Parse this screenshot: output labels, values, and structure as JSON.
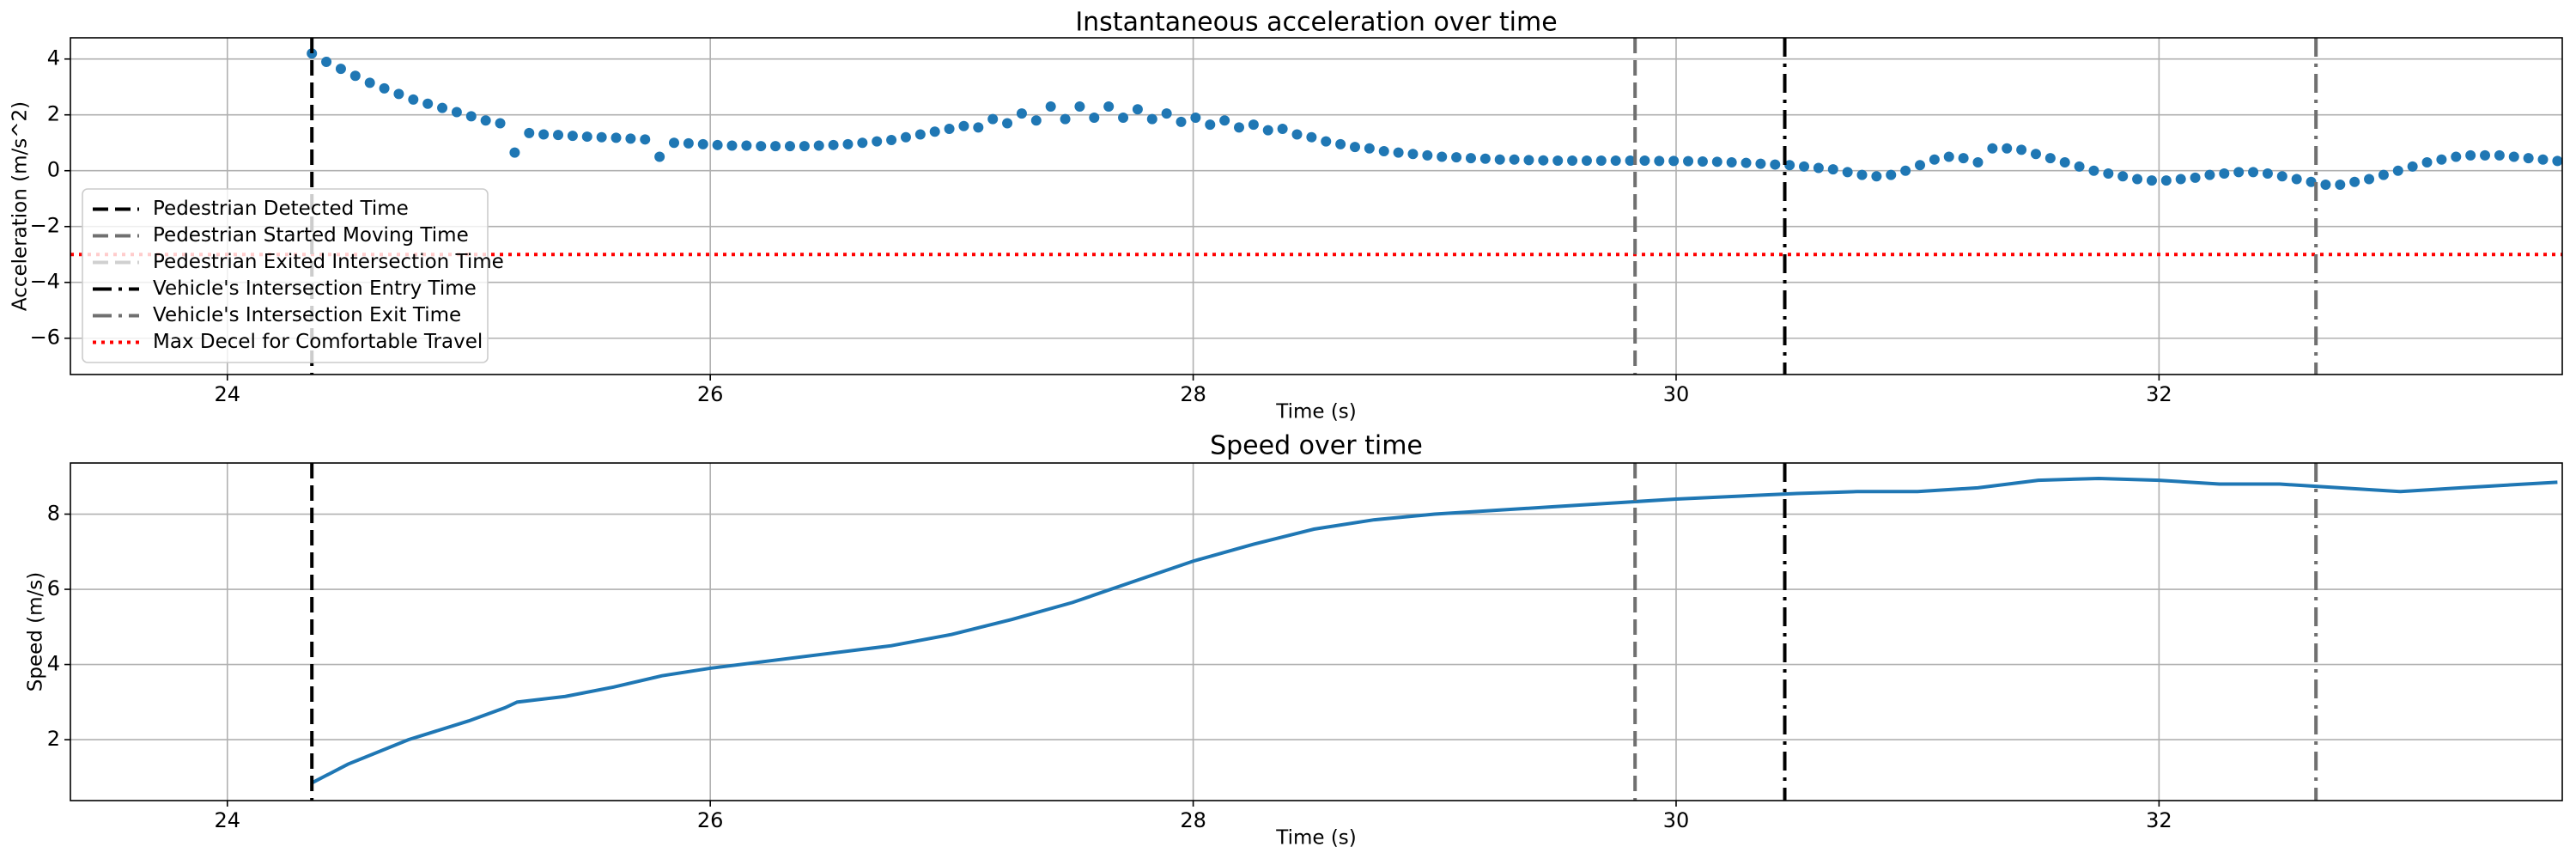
{
  "chart_data": [
    {
      "type": "scatter",
      "title": "Instantaneous acceleration over time",
      "x_label": "Time (s)",
      "y_label": "Acceleration (m/s^2)",
      "xlim": [
        23.35,
        33.67
      ],
      "xticks": [
        24,
        26,
        28,
        30,
        32
      ],
      "ylim": [
        -7.3,
        4.76
      ],
      "yticks": [
        -6,
        -4,
        -2,
        0,
        2,
        4
      ],
      "grid": true,
      "legend": "lower left",
      "color": "#1f77b4",
      "x": [
        24.35,
        24.41,
        24.47,
        24.53,
        24.59,
        24.65,
        24.71,
        24.77,
        24.83,
        24.89,
        24.95,
        25.01,
        25.07,
        25.13,
        25.19,
        25.25,
        25.31,
        25.37,
        25.43,
        25.49,
        25.55,
        25.61,
        25.67,
        25.73,
        25.79,
        25.85,
        25.91,
        25.97,
        26.03,
        26.09,
        26.15,
        26.21,
        26.27,
        26.33,
        26.39,
        26.45,
        26.51,
        26.57,
        26.63,
        26.69,
        26.75,
        26.81,
        26.87,
        26.93,
        26.99,
        27.05,
        27.11,
        27.17,
        27.23,
        27.29,
        27.35,
        27.41,
        27.47,
        27.53,
        27.59,
        27.65,
        27.71,
        27.77,
        27.83,
        27.89,
        27.95,
        28.01,
        28.07,
        28.13,
        28.19,
        28.25,
        28.31,
        28.37,
        28.43,
        28.49,
        28.55,
        28.61,
        28.67,
        28.73,
        28.79,
        28.85,
        28.91,
        28.97,
        29.03,
        29.09,
        29.15,
        29.21,
        29.27,
        29.33,
        29.39,
        29.45,
        29.51,
        29.57,
        29.63,
        29.69,
        29.75,
        29.81,
        29.87,
        29.93,
        29.99,
        30.05,
        30.11,
        30.17,
        30.23,
        30.29,
        30.35,
        30.41,
        30.47,
        30.53,
        30.59,
        30.65,
        30.71,
        30.77,
        30.83,
        30.89,
        30.95,
        31.01,
        31.07,
        31.13,
        31.19,
        31.25,
        31.31,
        31.37,
        31.43,
        31.49,
        31.55,
        31.61,
        31.67,
        31.73,
        31.79,
        31.85,
        31.91,
        31.97,
        32.03,
        32.09,
        32.15,
        32.21,
        32.27,
        32.33,
        32.39,
        32.45,
        32.51,
        32.57,
        32.63,
        32.69,
        32.75,
        32.81,
        32.87,
        32.93,
        32.99,
        33.05,
        33.11,
        33.17,
        33.23,
        33.29,
        33.35,
        33.41,
        33.47,
        33.53,
        33.59,
        33.65
      ],
      "values": [
        4.2,
        3.9,
        3.65,
        3.4,
        3.15,
        2.95,
        2.75,
        2.55,
        2.4,
        2.25,
        2.1,
        1.95,
        1.8,
        1.7,
        0.65,
        1.35,
        1.3,
        1.28,
        1.25,
        1.22,
        1.2,
        1.18,
        1.15,
        1.12,
        0.5,
        1.0,
        0.98,
        0.95,
        0.92,
        0.9,
        0.9,
        0.88,
        0.88,
        0.88,
        0.88,
        0.9,
        0.92,
        0.95,
        1.0,
        1.05,
        1.1,
        1.2,
        1.3,
        1.4,
        1.5,
        1.6,
        1.55,
        1.85,
        1.7,
        2.05,
        1.8,
        2.3,
        1.85,
        2.3,
        1.9,
        2.3,
        1.9,
        2.2,
        1.85,
        2.05,
        1.75,
        1.9,
        1.65,
        1.8,
        1.55,
        1.65,
        1.45,
        1.5,
        1.3,
        1.2,
        1.05,
        0.95,
        0.85,
        0.8,
        0.7,
        0.65,
        0.6,
        0.55,
        0.5,
        0.48,
        0.45,
        0.43,
        0.4,
        0.4,
        0.38,
        0.37,
        0.36,
        0.36,
        0.36,
        0.36,
        0.36,
        0.36,
        0.36,
        0.35,
        0.35,
        0.34,
        0.33,
        0.32,
        0.3,
        0.28,
        0.25,
        0.22,
        0.2,
        0.15,
        0.1,
        0.05,
        -0.05,
        -0.15,
        -0.2,
        -0.15,
        0.0,
        0.2,
        0.4,
        0.5,
        0.45,
        0.3,
        0.8,
        0.8,
        0.75,
        0.6,
        0.45,
        0.3,
        0.15,
        0.0,
        -0.1,
        -0.2,
        -0.3,
        -0.35,
        -0.35,
        -0.3,
        -0.25,
        -0.15,
        -0.1,
        -0.05,
        -0.05,
        -0.1,
        -0.2,
        -0.3,
        -0.4,
        -0.5,
        -0.5,
        -0.4,
        -0.3,
        -0.15,
        0.0,
        0.15,
        0.3,
        0.4,
        0.5,
        0.55,
        0.55,
        0.55,
        0.5,
        0.45,
        0.4,
        0.35
      ],
      "vlines": [
        {
          "name": "Pedestrian Detected Time",
          "x": 24.35,
          "color": "#000000",
          "style": "dashed"
        },
        {
          "name": "Pedestrian Started Moving Time",
          "x": 29.83,
          "color": "#707070",
          "style": "dashed"
        },
        {
          "name": "Pedestrian Exited Intersection Time",
          "x": null,
          "color": "#d0d0d0",
          "style": "dashed"
        },
        {
          "name": "Vehicle's Intersection Entry Time",
          "x": 30.45,
          "color": "#000000",
          "style": "dashdot"
        },
        {
          "name": "Vehicle's Intersection Exit Time",
          "x": 32.65,
          "color": "#707070",
          "style": "dashdot"
        }
      ],
      "hlines": [
        {
          "name": "Max Decel for Comfortable Travel",
          "y": -3,
          "color": "#ff0000",
          "style": "dotted"
        }
      ]
    },
    {
      "type": "line",
      "title": "Speed over time",
      "x_label": "Time (s)",
      "y_label": "Speed (m/s)",
      "xlim": [
        23.35,
        33.67
      ],
      "xticks": [
        24,
        26,
        28,
        30,
        32
      ],
      "ylim": [
        0.38,
        9.36
      ],
      "yticks": [
        2,
        4,
        6,
        8
      ],
      "grid": true,
      "color": "#1f77b4",
      "x": [
        24.35,
        24.5,
        24.75,
        25.0,
        25.15,
        25.2,
        25.4,
        25.6,
        25.8,
        26.0,
        26.25,
        26.5,
        26.75,
        27.0,
        27.25,
        27.5,
        27.75,
        28.0,
        28.25,
        28.5,
        28.75,
        29.0,
        29.5,
        30.0,
        30.5,
        30.75,
        31.0,
        31.25,
        31.5,
        31.75,
        32.0,
        32.25,
        32.5,
        32.75,
        33.0,
        33.25,
        33.65
      ],
      "values": [
        0.85,
        1.35,
        2.0,
        2.5,
        2.85,
        3.0,
        3.15,
        3.4,
        3.7,
        3.9,
        4.1,
        4.3,
        4.5,
        4.8,
        5.2,
        5.65,
        6.2,
        6.75,
        7.2,
        7.6,
        7.85,
        8.0,
        8.2,
        8.4,
        8.55,
        8.6,
        8.6,
        8.7,
        8.9,
        8.95,
        8.9,
        8.8,
        8.8,
        8.7,
        8.6,
        8.7,
        8.85
      ],
      "vlines": [
        {
          "x": 24.35,
          "color": "#000000",
          "style": "dashed"
        },
        {
          "x": 29.83,
          "color": "#707070",
          "style": "dashed"
        },
        {
          "x": 30.45,
          "color": "#000000",
          "style": "dashdot"
        },
        {
          "x": 32.65,
          "color": "#707070",
          "style": "dashdot"
        }
      ]
    }
  ]
}
